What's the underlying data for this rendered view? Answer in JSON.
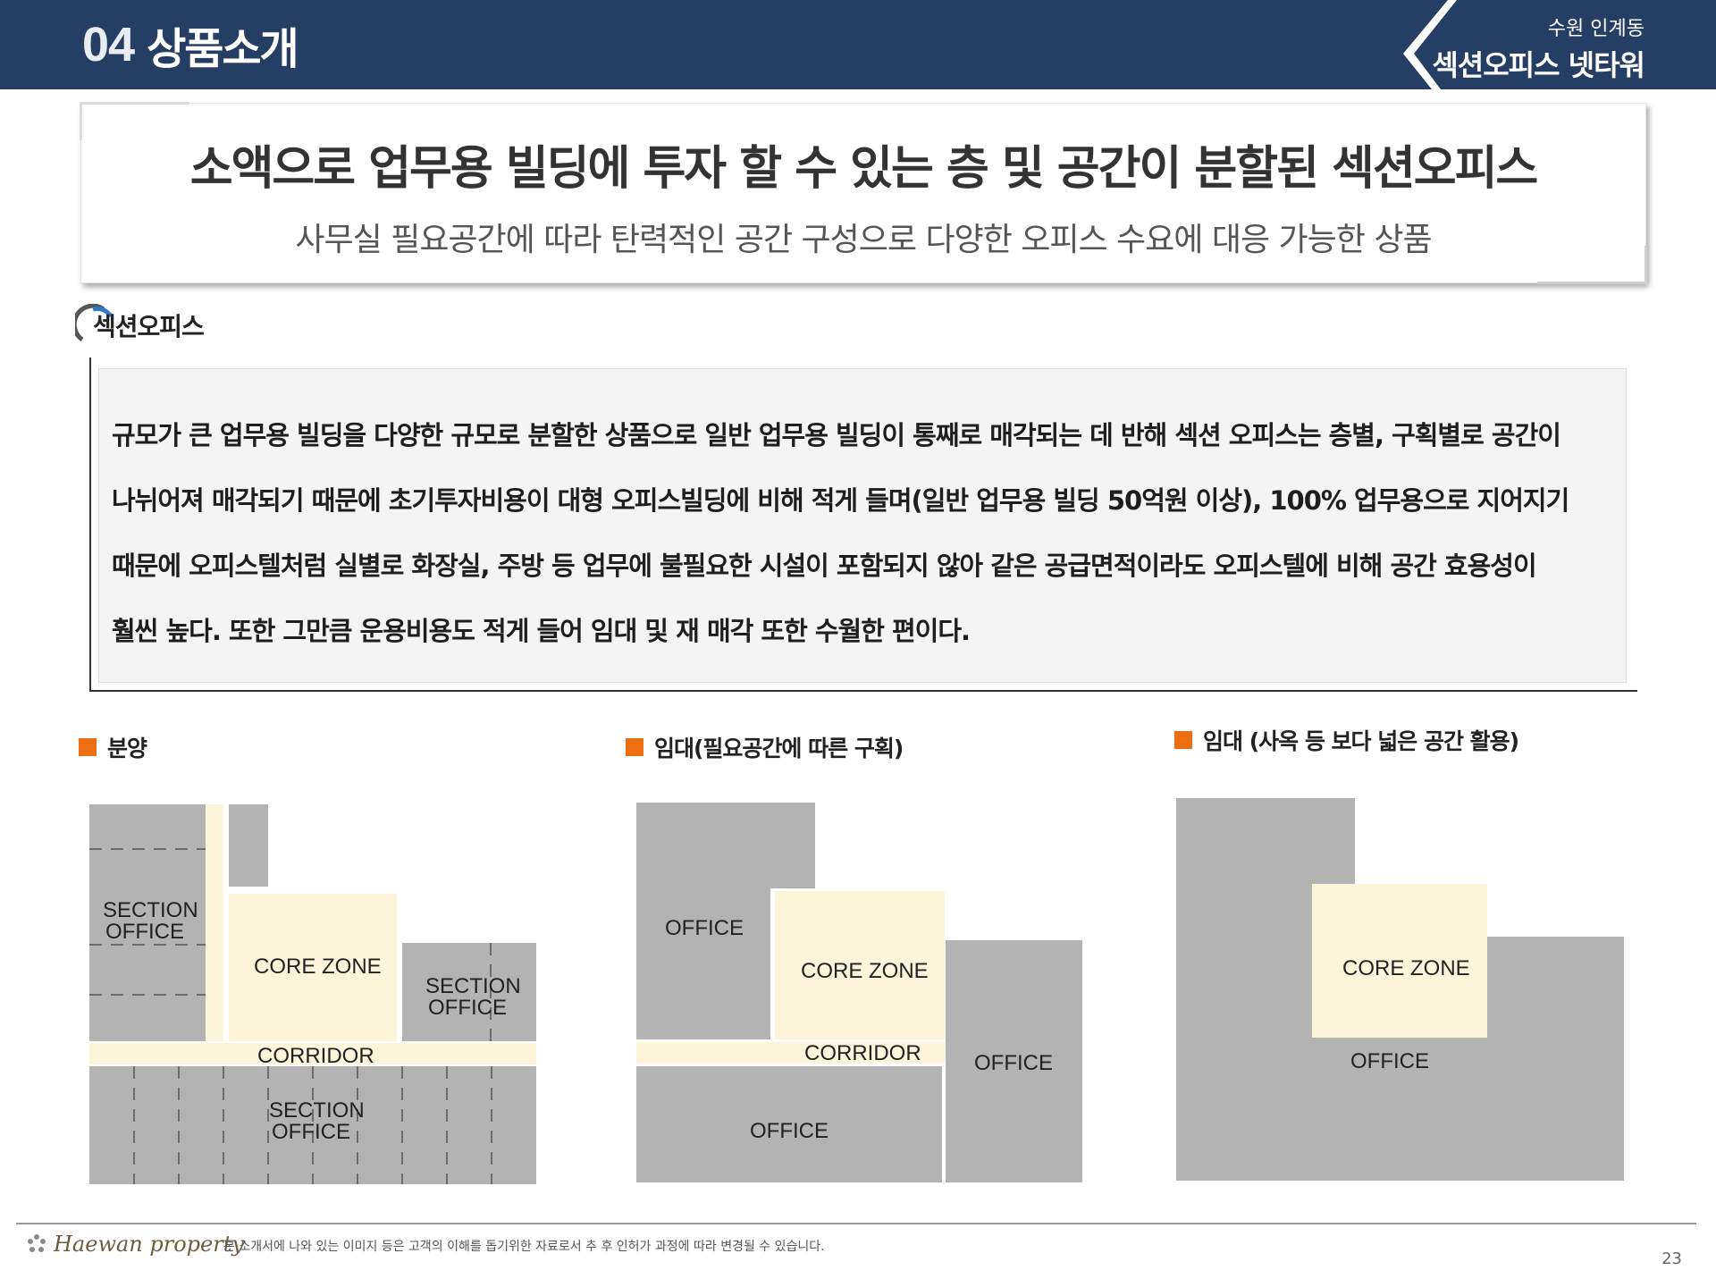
{
  "header": {
    "number": "04",
    "title": "상품소개",
    "location": "수원 인계동",
    "property_name": "섹션오피스 넷타워"
  },
  "headline": {
    "title": "소액으로 업무용 빌딩에 투자 할 수 있는 층 및 공간이 분할된 섹션오피스",
    "subtitle": "사무실 필요공간에 따라 탄력적인 공간 구성으로 다양한 오피스 수요에 대응 가능한 상품"
  },
  "section": {
    "label": "섹션오피스",
    "description": [
      "규모가 큰 업무용 빌딩을 다양한 규모로 분할한 상품으로 일반 업무용 빌딩이 통째로 매각되는 데 반해 섹션 오피스는 층별, 구획별로 공간이",
      "나뉘어져 매각되기 때문에 초기투자비용이 대형 오피스빌딩에 비해 적게 들며(일반 업무용 빌딩 50억원 이상), 100% 업무용으로 지어지기",
      "때문에 오피스텔처럼 실별로 화장실, 주방 등 업무에 불필요한 시설이 포함되지 않아 같은 공급면적이라도 오피스텔에 비해 공간 효용성이",
      "훨씬 높다. 또한 그만큼 운용비용도 적게 들어 임대 및 재 매각 또한 수월한 편이다."
    ]
  },
  "categories": [
    {
      "label": "분양"
    },
    {
      "label": "임대(필요공간에 따른 구획)"
    },
    {
      "label": "임대 (사옥 등 보다 넓은 공간 활용)"
    }
  ],
  "diagrams": {
    "sale": {
      "section_office_top": [
        "SECTION",
        "OFFICE"
      ],
      "core_zone": "CORE ZONE",
      "section_office_right": [
        "SECTION",
        "OFFICE"
      ],
      "corridor": "CORRIDOR",
      "section_office_bottom": [
        "SECTION",
        "OFFICE"
      ]
    },
    "lease_partition": {
      "office_left": "OFFICE",
      "core_zone": "CORE ZONE",
      "corridor": "CORRIDOR",
      "office_right": "OFFICE",
      "office_bottom": "OFFICE"
    },
    "lease_whole": {
      "core_zone": "CORE ZONE",
      "office": "OFFICE"
    }
  },
  "colors": {
    "header_bg": "#253e63",
    "accent": "#ec6d12",
    "office_gray": "#b3b3b3",
    "core_cream": "#fdf5da"
  },
  "footer": {
    "logo": "Haewan property",
    "note": "본 소개서에 나와 있는 이미지 등은 고객의 이해를 돕기위한 자료로서 추 후 인허가 과정에 따라 변경될 수 있습니다.",
    "page": "23"
  }
}
